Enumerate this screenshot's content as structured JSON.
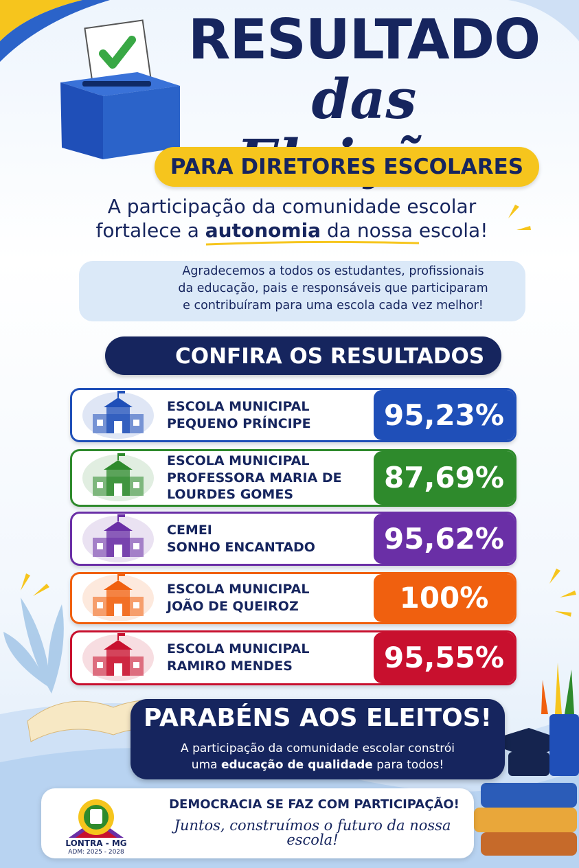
{
  "header": {
    "title_line1": "RESULTADO",
    "title_line2": "das Eleições",
    "badge": "PARA DIRETORES ESCOLARES"
  },
  "tagline": {
    "line1": "A participação da comunidade escolar",
    "line2_before": "fortalece a",
    "line2_emphasis": "autonomia",
    "line2_after": "da nossa escola!"
  },
  "thanks": {
    "lines": [
      "Agradecemos a todos os estudantes, profissionais",
      "da educação, pais e responsáveis que participaram",
      "e contribuíram para uma escola cada vez melhor!"
    ]
  },
  "results_heading": "CONFIRA OS RESULTADOS",
  "results": [
    {
      "school": [
        "ESCOLA MUNICIPAL",
        "PEQUENO PRÍNCIPE"
      ],
      "percent": "95,23%",
      "color": "#1f4fb8"
    },
    {
      "school": [
        "ESCOLA MUNICIPAL",
        "PROFESSORA MARIA DE",
        "LOURDES GOMES"
      ],
      "percent": "87,69%",
      "color": "#2e8a2c"
    },
    {
      "school": [
        "CEMEI",
        "SONHO ENCANTADO"
      ],
      "percent": "95,62%",
      "color": "#6a2fa6"
    },
    {
      "school": [
        "ESCOLA MUNICIPAL",
        "JOÃO DE QUEIROZ"
      ],
      "percent": "100%",
      "color": "#f0600f"
    },
    {
      "school": [
        "ESCOLA MUNICIPAL",
        "RAMIRO MENDES"
      ],
      "percent": "95,55%",
      "color": "#c8102e"
    }
  ],
  "congrats": {
    "title": "PARABÉNS AOS ELEITOS!",
    "line1": "A participação da comunidade escolar constrói",
    "line2_before": "uma",
    "line2_emphasis": "educação de qualidade",
    "line2_after": "para todos!"
  },
  "footer": {
    "logo_name": "LONTRA - MG",
    "logo_term": "ADM: 2025 - 2028",
    "line1": "DEMOCRACIA SE FAZ COM PARTICIPAÇÃO!",
    "line2": "Juntos, construímos o futuro da nossa escola!"
  }
}
